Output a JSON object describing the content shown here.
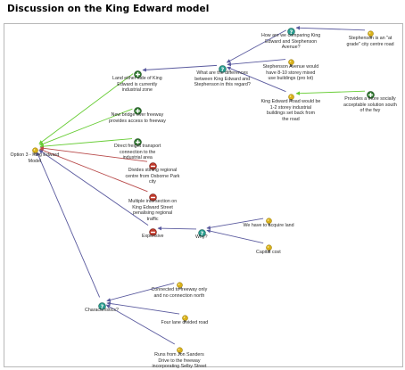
{
  "title": "Discussion on the King Edward model",
  "node_types": {
    "question": "question-mark-icon",
    "idea": "lightbulb-icon",
    "pro": "plus-icon",
    "con": "minus-icon"
  },
  "colors": {
    "pro_link": "#66cc33",
    "con_link": "#b84a4a",
    "neutral_link": "#5a5a9e",
    "question_fill": "#2a9d8f",
    "idea_fill": "#d8b01a",
    "pro_fill": "#2f7a2f",
    "con_fill": "#c0392b"
  },
  "nodes": [
    {
      "id": "n1",
      "type": "idea",
      "label": "Option 3 - King Edward\nModel"
    },
    {
      "id": "n2",
      "type": "pro",
      "label": "Land either side of King\nEdward is currently\nindustrial zone"
    },
    {
      "id": "n3",
      "type": "pro",
      "label": "New bridge over freeway\nprovides access to freeway"
    },
    {
      "id": "n4",
      "type": "pro",
      "label": "Direct freight transport\nconnection to the\nindustrial area"
    },
    {
      "id": "n5",
      "type": "con",
      "label": "Divides stirling regional\ncentre from Osborne Park\ncity"
    },
    {
      "id": "n6",
      "type": "con",
      "label": "Multiple intersection on\nKing Edward Street\npenalising regional\ntraffic"
    },
    {
      "id": "n7",
      "type": "con",
      "label": "Expensive"
    },
    {
      "id": "n8",
      "type": "question",
      "label": "Why?"
    },
    {
      "id": "n9",
      "type": "idea",
      "label": "We have to acquire land"
    },
    {
      "id": "n10",
      "type": "idea",
      "label": "Capital cost"
    },
    {
      "id": "n11",
      "type": "question",
      "label": "Characteristics?"
    },
    {
      "id": "n12",
      "type": "idea",
      "label": "Connected to freeway only\nand no connection north"
    },
    {
      "id": "n13",
      "type": "idea",
      "label": "Four lane divided road"
    },
    {
      "id": "n14",
      "type": "idea",
      "label": "Runs from Jon Sanders\nDrive to the freeway\nincorporating Selby Street"
    },
    {
      "id": "n15",
      "type": "question",
      "label": "What are the differences\nbetween King Edward and\nStephenson in this regard?"
    },
    {
      "id": "n16",
      "type": "question",
      "label": "How are we comparing King\nEdward and Stephenson\nAvenue?"
    },
    {
      "id": "n17",
      "type": "idea",
      "label": "Stephenson is an \"at\ngrade\" city centre road"
    },
    {
      "id": "n18",
      "type": "idea",
      "label": "Stephenson Avenue would\nhave 8-10 storey mixed\nuse buildings (pro lot)"
    },
    {
      "id": "n19",
      "type": "idea",
      "label": "King Edward Road would be\n1-2 storey industrial\nbuildings set back from\nthe road"
    },
    {
      "id": "n20",
      "type": "pro",
      "label": "Provides a more socially\nacceptable solution south\nof the fwy"
    }
  ],
  "links": [
    {
      "from": "n2",
      "to": "n1",
      "kind": "pro"
    },
    {
      "from": "n3",
      "to": "n1",
      "kind": "pro"
    },
    {
      "from": "n4",
      "to": "n1",
      "kind": "pro"
    },
    {
      "from": "n5",
      "to": "n1",
      "kind": "con"
    },
    {
      "from": "n6",
      "to": "n1",
      "kind": "con"
    },
    {
      "from": "n7",
      "to": "n1",
      "kind": "neutral"
    },
    {
      "from": "n11",
      "to": "n1",
      "kind": "neutral"
    },
    {
      "from": "n8",
      "to": "n7",
      "kind": "neutral"
    },
    {
      "from": "n9",
      "to": "n8",
      "kind": "neutral"
    },
    {
      "from": "n10",
      "to": "n8",
      "kind": "neutral"
    },
    {
      "from": "n12",
      "to": "n11",
      "kind": "neutral"
    },
    {
      "from": "n13",
      "to": "n11",
      "kind": "neutral"
    },
    {
      "from": "n14",
      "to": "n11",
      "kind": "neutral"
    },
    {
      "from": "n15",
      "to": "n2",
      "kind": "neutral"
    },
    {
      "from": "n16",
      "to": "n15",
      "kind": "neutral"
    },
    {
      "from": "n17",
      "to": "n16",
      "kind": "neutral"
    },
    {
      "from": "n18",
      "to": "n15",
      "kind": "neutral"
    },
    {
      "from": "n19",
      "to": "n15",
      "kind": "neutral"
    },
    {
      "from": "n20",
      "to": "n19",
      "kind": "pro"
    }
  ]
}
